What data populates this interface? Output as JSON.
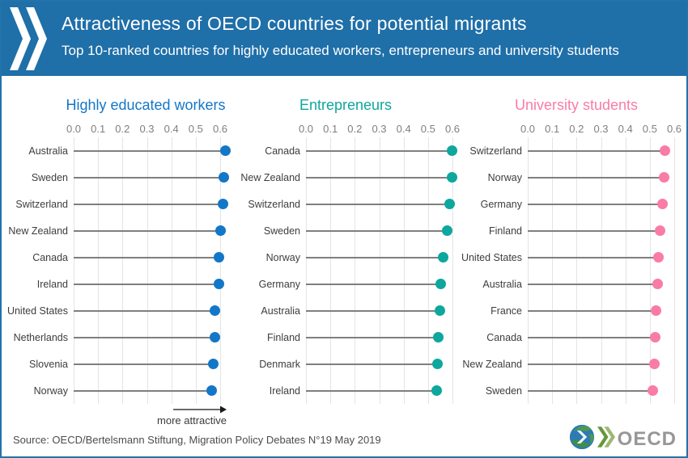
{
  "header": {
    "title": "Attractiveness of OECD countries for potential migrants",
    "subtitle": "Top 10-ranked countries for highly educated workers, entrepreneurs and university students",
    "background_color": "#1F6FA8",
    "logo": "oecd-double-chevron-white"
  },
  "annotations": {
    "more_attractive": "more attractive",
    "arrow_icon": "right-arrow"
  },
  "footer": {
    "source": "Source: OECD/Bertelsmann Stiftung, Migration Policy Debates N°19 May 2019",
    "brand_wordmark": "OECD",
    "brand_logo": "oecd-globe-with-chevrons"
  },
  "chart_data": [
    {
      "type": "bar",
      "style": "lollipop-dot",
      "orientation": "horizontal",
      "title": "Highly educated workers",
      "color": "#1377C8",
      "categories": [
        "Australia",
        "Sweden",
        "Switzerland",
        "New Zealand",
        "Canada",
        "Ireland",
        "United States",
        "Netherlands",
        "Slovenia",
        "Norway"
      ],
      "values": [
        0.62,
        0.615,
        0.61,
        0.6,
        0.596,
        0.596,
        0.578,
        0.578,
        0.572,
        0.566
      ],
      "xlim": [
        0,
        0.6
      ],
      "tick_labels": [
        "0.0",
        "0.1",
        "0.2",
        "0.3",
        "0.4",
        "0.5",
        "0.6"
      ],
      "grid": "vertical",
      "legend": "none"
    },
    {
      "type": "bar",
      "style": "lollipop-dot",
      "orientation": "horizontal",
      "title": "Entrepreneurs",
      "color": "#0EA79D",
      "categories": [
        "Canada",
        "New Zealand",
        "Switzerland",
        "Sweden",
        "Norway",
        "Germany",
        "Australia",
        "Finland",
        "Denmark",
        "Ireland"
      ],
      "values": [
        0.597,
        0.597,
        0.587,
        0.58,
        0.563,
        0.553,
        0.55,
        0.543,
        0.54,
        0.536
      ],
      "xlim": [
        0,
        0.6
      ],
      "tick_labels": [
        "0.0",
        "0.1",
        "0.2",
        "0.3",
        "0.4",
        "0.5",
        "0.6"
      ],
      "grid": "vertical",
      "legend": "none"
    },
    {
      "type": "bar",
      "style": "lollipop-dot",
      "orientation": "horizontal",
      "title": "University students",
      "color": "#F97CA4",
      "categories": [
        "Switzerland",
        "Norway",
        "Germany",
        "Finland",
        "United States",
        "Australia",
        "France",
        "Canada",
        "New Zealand",
        "Sweden"
      ],
      "values": [
        0.563,
        0.559,
        0.553,
        0.542,
        0.536,
        0.532,
        0.525,
        0.522,
        0.518,
        0.512
      ],
      "xlim": [
        0,
        0.6
      ],
      "tick_labels": [
        "0.0",
        "0.1",
        "0.2",
        "0.3",
        "0.4",
        "0.5",
        "0.6"
      ],
      "grid": "vertical",
      "legend": "none"
    }
  ]
}
